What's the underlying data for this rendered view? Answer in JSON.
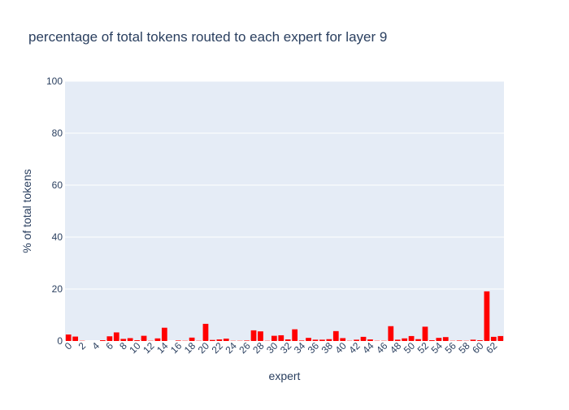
{
  "chart_data": {
    "type": "bar",
    "title": "percentage of total tokens routed to each expert for layer 9",
    "xlabel": "expert",
    "ylabel": "% of total tokens",
    "ylim": [
      0,
      100
    ],
    "yticks": [
      0,
      20,
      40,
      60,
      80,
      100
    ],
    "xticks": [
      0,
      2,
      4,
      6,
      8,
      10,
      12,
      14,
      16,
      18,
      20,
      22,
      24,
      26,
      28,
      30,
      32,
      34,
      36,
      38,
      40,
      42,
      44,
      46,
      48,
      50,
      52,
      54,
      56,
      58,
      60,
      62
    ],
    "xlim": [
      -0.5,
      63.5
    ],
    "grid": true,
    "bar_color": "#ff0000",
    "plot_background": "#e5ecf6",
    "categories": [
      0,
      1,
      2,
      3,
      4,
      5,
      6,
      7,
      8,
      9,
      10,
      11,
      12,
      13,
      14,
      15,
      16,
      17,
      18,
      19,
      20,
      21,
      22,
      23,
      24,
      25,
      26,
      27,
      28,
      29,
      30,
      31,
      32,
      33,
      34,
      35,
      36,
      37,
      38,
      39,
      40,
      41,
      42,
      43,
      44,
      45,
      46,
      47,
      48,
      49,
      50,
      51,
      52,
      53,
      54,
      55,
      56,
      57,
      58,
      59,
      60,
      61,
      62,
      63
    ],
    "values": [
      2.5,
      1.7,
      0.1,
      0.0,
      0.0,
      0.3,
      1.8,
      3.3,
      0.8,
      1.1,
      0.3,
      2.0,
      0.1,
      1.0,
      5.1,
      0.0,
      0.2,
      0.1,
      1.3,
      0.1,
      6.6,
      0.4,
      0.6,
      0.9,
      0.1,
      0.1,
      0.2,
      4.1,
      3.7,
      0.1,
      2.0,
      2.2,
      0.6,
      4.5,
      0.2,
      1.2,
      0.5,
      0.5,
      0.7,
      3.8,
      1.1,
      0.1,
      0.5,
      1.6,
      0.6,
      0.1,
      0.1,
      5.7,
      0.5,
      1.0,
      1.9,
      0.7,
      5.5,
      0.3,
      1.2,
      1.5,
      0.1,
      0.2,
      0.1,
      0.5,
      0.3,
      19.1,
      1.6,
      1.9
    ]
  }
}
